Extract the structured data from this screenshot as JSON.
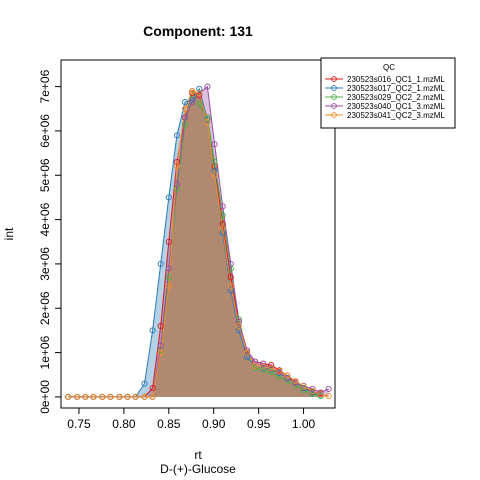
{
  "chart_data": {
    "type": "area",
    "title": "Component: 131",
    "xlabel": "rt",
    "xsublabel": "D-(+)-Glucose",
    "ylabel": "int",
    "xlim": [
      0.73,
      1.035
    ],
    "ylim": [
      -250000.0,
      7600000.0
    ],
    "x_ticks": [
      0.75,
      0.8,
      0.85,
      0.9,
      0.95,
      1.0
    ],
    "x_tick_labels": [
      "0.75",
      "0.80",
      "0.85",
      "0.90",
      "0.95",
      "1.00"
    ],
    "y_ticks": [
      0,
      1000000,
      2000000,
      3000000,
      4000000,
      5000000,
      6000000,
      7000000
    ],
    "y_tick_labels": [
      "0e+00",
      "1e+06",
      "2e+06",
      "3e+06",
      "4e+06",
      "5e+06",
      "6e+06",
      "7e+06"
    ],
    "grid": false,
    "legend": {
      "title": "QC",
      "position": "top-right"
    },
    "series": [
      {
        "name": "230523s016_QC1_1.mzML",
        "color": "#d7191c",
        "points": [
          [
            0.738,
            0
          ],
          [
            0.748,
            0
          ],
          [
            0.757,
            0
          ],
          [
            0.766,
            0
          ],
          [
            0.776,
            0
          ],
          [
            0.785,
            0
          ],
          [
            0.795,
            0
          ],
          [
            0.804,
            0
          ],
          [
            0.813,
            0
          ],
          [
            0.823,
            0
          ],
          [
            0.832,
            200000
          ],
          [
            0.841,
            1600000
          ],
          [
            0.85,
            3500000
          ],
          [
            0.859,
            5300000
          ],
          [
            0.868,
            6300000
          ],
          [
            0.876,
            6850000
          ],
          [
            0.884,
            6800000
          ],
          [
            0.893,
            6300000
          ],
          [
            0.901,
            5200000
          ],
          [
            0.91,
            3900000
          ],
          [
            0.919,
            2700000
          ],
          [
            0.928,
            1700000
          ],
          [
            0.937,
            1050000
          ],
          [
            0.946,
            800000
          ],
          [
            0.955,
            750000
          ],
          [
            0.964,
            720000
          ],
          [
            0.973,
            600000
          ],
          [
            0.982,
            480000
          ],
          [
            0.991,
            330000
          ],
          [
            1.0,
            200000
          ],
          [
            1.01,
            120000
          ],
          [
            1.019,
            80000
          ]
        ]
      },
      {
        "name": "230523s017_QC2_1.mzML",
        "color": "#2c7bb6",
        "points": [
          [
            0.738,
            0
          ],
          [
            0.748,
            0
          ],
          [
            0.757,
            0
          ],
          [
            0.766,
            0
          ],
          [
            0.776,
            0
          ],
          [
            0.785,
            0
          ],
          [
            0.795,
            0
          ],
          [
            0.804,
            0
          ],
          [
            0.813,
            0
          ],
          [
            0.823,
            300000
          ],
          [
            0.832,
            1500000
          ],
          [
            0.841,
            3000000
          ],
          [
            0.85,
            4500000
          ],
          [
            0.859,
            5900000
          ],
          [
            0.868,
            6650000
          ],
          [
            0.876,
            6700000
          ],
          [
            0.884,
            6950000
          ],
          [
            0.893,
            6250000
          ],
          [
            0.901,
            5100000
          ],
          [
            0.91,
            3700000
          ],
          [
            0.919,
            2400000
          ],
          [
            0.928,
            1500000
          ],
          [
            0.937,
            900000
          ],
          [
            0.946,
            700000
          ],
          [
            0.955,
            650000
          ],
          [
            0.964,
            620000
          ],
          [
            0.973,
            540000
          ],
          [
            0.982,
            430000
          ],
          [
            0.991,
            320000
          ],
          [
            1.0,
            200000
          ],
          [
            1.01,
            100000
          ],
          [
            1.019,
            30000
          ]
        ]
      },
      {
        "name": "230523s029_QC2_2.mzML",
        "color": "#4daf4a",
        "points": [
          [
            0.738,
            0
          ],
          [
            0.748,
            0
          ],
          [
            0.757,
            0
          ],
          [
            0.766,
            0
          ],
          [
            0.776,
            0
          ],
          [
            0.785,
            0
          ],
          [
            0.795,
            0
          ],
          [
            0.804,
            0
          ],
          [
            0.813,
            0
          ],
          [
            0.823,
            0
          ],
          [
            0.832,
            0
          ],
          [
            0.841,
            1050000
          ],
          [
            0.85,
            2700000
          ],
          [
            0.859,
            4700000
          ],
          [
            0.868,
            6150000
          ],
          [
            0.876,
            6900000
          ],
          [
            0.884,
            6600000
          ],
          [
            0.893,
            6300000
          ],
          [
            0.901,
            5300000
          ],
          [
            0.91,
            4100000
          ],
          [
            0.919,
            2900000
          ],
          [
            0.928,
            1750000
          ],
          [
            0.937,
            1000000
          ],
          [
            0.946,
            650000
          ],
          [
            0.955,
            600000
          ],
          [
            0.964,
            560000
          ],
          [
            0.973,
            460000
          ],
          [
            0.982,
            360000
          ],
          [
            0.991,
            260000
          ],
          [
            1.0,
            150000
          ],
          [
            1.01,
            70000
          ],
          [
            1.019,
            20000
          ]
        ]
      },
      {
        "name": "230523s040_QC1_3.mzML",
        "color": "#984ea3",
        "points": [
          [
            0.738,
            0
          ],
          [
            0.748,
            0
          ],
          [
            0.757,
            0
          ],
          [
            0.766,
            0
          ],
          [
            0.776,
            0
          ],
          [
            0.785,
            0
          ],
          [
            0.795,
            0
          ],
          [
            0.804,
            0
          ],
          [
            0.813,
            0
          ],
          [
            0.823,
            0
          ],
          [
            0.832,
            0
          ],
          [
            0.841,
            1150000
          ],
          [
            0.85,
            2900000
          ],
          [
            0.859,
            4800000
          ],
          [
            0.868,
            6300000
          ],
          [
            0.876,
            6650000
          ],
          [
            0.884,
            6850000
          ],
          [
            0.893,
            7000000
          ],
          [
            0.901,
            5700000
          ],
          [
            0.91,
            4300000
          ],
          [
            0.919,
            3000000
          ],
          [
            0.928,
            1700000
          ],
          [
            0.937,
            1050000
          ],
          [
            0.946,
            800000
          ],
          [
            0.955,
            750000
          ],
          [
            0.964,
            640000
          ],
          [
            0.973,
            560000
          ],
          [
            0.982,
            420000
          ],
          [
            0.991,
            320000
          ],
          [
            1.0,
            250000
          ],
          [
            1.01,
            180000
          ],
          [
            1.019,
            100000
          ],
          [
            1.028,
            180000
          ]
        ]
      },
      {
        "name": "230523s041_QC2_3.mzML",
        "color": "#f28e2b",
        "points": [
          [
            0.738,
            0
          ],
          [
            0.748,
            0
          ],
          [
            0.757,
            0
          ],
          [
            0.766,
            0
          ],
          [
            0.776,
            0
          ],
          [
            0.785,
            0
          ],
          [
            0.795,
            0
          ],
          [
            0.804,
            0
          ],
          [
            0.813,
            0
          ],
          [
            0.823,
            0
          ],
          [
            0.832,
            0
          ],
          [
            0.841,
            1000000
          ],
          [
            0.85,
            2500000
          ],
          [
            0.859,
            5200000
          ],
          [
            0.868,
            6500000
          ],
          [
            0.876,
            6900000
          ],
          [
            0.884,
            6850000
          ],
          [
            0.893,
            6200000
          ],
          [
            0.901,
            5000000
          ],
          [
            0.91,
            3800000
          ],
          [
            0.919,
            2500000
          ],
          [
            0.928,
            1600000
          ],
          [
            0.937,
            1000000
          ],
          [
            0.946,
            700000
          ],
          [
            0.955,
            680000
          ],
          [
            0.964,
            640000
          ],
          [
            0.973,
            580000
          ],
          [
            0.982,
            480000
          ],
          [
            0.991,
            360000
          ],
          [
            1.0,
            240000
          ],
          [
            1.01,
            130000
          ],
          [
            1.019,
            60000
          ],
          [
            1.028,
            20000
          ]
        ]
      }
    ]
  }
}
